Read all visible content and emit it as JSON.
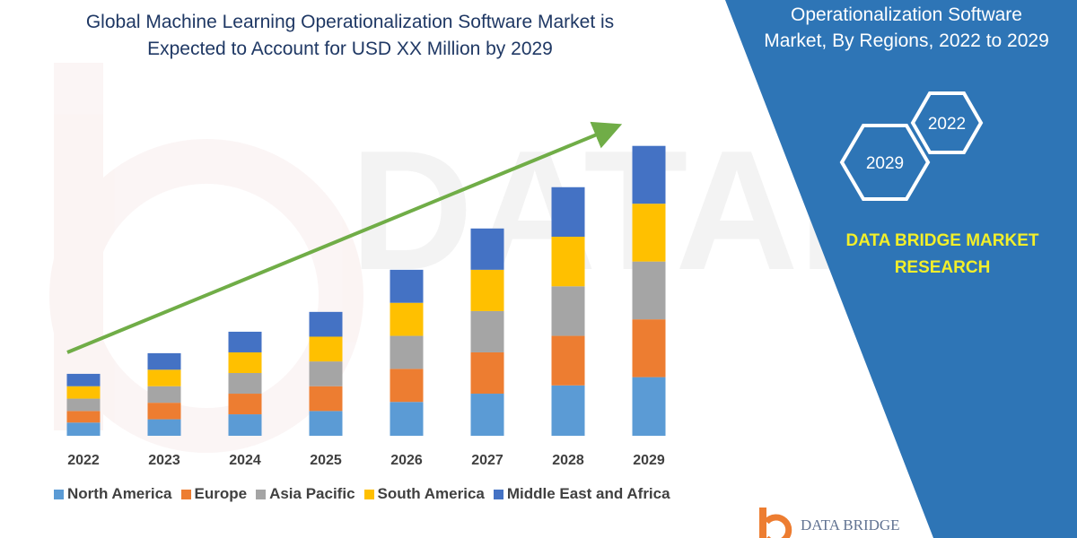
{
  "title_lines": [
    "Global Machine Learning Operationalization Software Market is",
    "Expected to Account for USD XX Million by 2029"
  ],
  "panel": {
    "title_lines": [
      "Operationalization Software",
      "Market, By Regions, 2022 to 2029"
    ],
    "hexagons": [
      "2022",
      "2029"
    ],
    "brand_lines": [
      "DATA BRIDGE MARKET",
      "RESEARCH"
    ]
  },
  "colors": {
    "panel_blue": "#2e75b6",
    "arrow_green": "#70ad47",
    "brand_yellow": "#f2ef2a",
    "title_navy": "#1f3864"
  },
  "chart_data": {
    "type": "bar",
    "stacked": true,
    "categories": [
      "2022",
      "2023",
      "2024",
      "2025",
      "2026",
      "2027",
      "2028",
      "2029"
    ],
    "series": [
      {
        "name": "North America",
        "color": "#5b9bd5",
        "values": [
          16,
          20,
          26,
          30,
          41,
          51,
          61,
          71
        ]
      },
      {
        "name": "Europe",
        "color": "#ed7d31",
        "values": [
          14,
          20,
          25,
          30,
          40,
          50,
          60,
          70
        ]
      },
      {
        "name": "Asia Pacific",
        "color": "#a5a5a5",
        "values": [
          15,
          20,
          25,
          30,
          40,
          50,
          60,
          70
        ]
      },
      {
        "name": "South America",
        "color": "#ffc000",
        "values": [
          15,
          20,
          25,
          30,
          40,
          50,
          60,
          70
        ]
      },
      {
        "name": "Middle East and Africa",
        "color": "#4472c4",
        "values": [
          15,
          20,
          25,
          30,
          40,
          50,
          60,
          70
        ]
      }
    ],
    "legend_position": "bottom",
    "grid": false,
    "trend_arrow": true,
    "ylim": [
      0,
      380
    ]
  }
}
